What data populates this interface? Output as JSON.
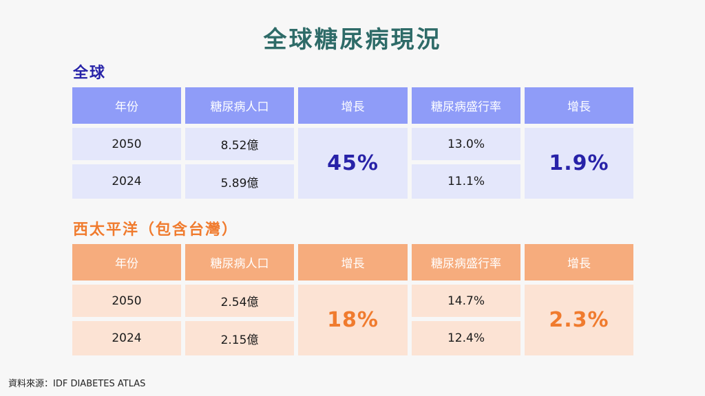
{
  "title": "全球糖尿病現況",
  "sections": {
    "global": {
      "heading": "全球",
      "headers": [
        "年份",
        "糖尿病人口",
        "增長",
        "糖尿病盛行率",
        "增長"
      ],
      "rows": [
        {
          "year": "2050",
          "population": "8.52億",
          "prevalence": "13.0%"
        },
        {
          "year": "2024",
          "population": "5.89億",
          "prevalence": "11.1%"
        }
      ],
      "population_growth": "45%",
      "prevalence_growth": "1.9%"
    },
    "western_pacific": {
      "heading": "西太平洋（包含台灣）",
      "headers": [
        "年份",
        "糖尿病人口",
        "增長",
        "糖尿病盛行率",
        "增長"
      ],
      "rows": [
        {
          "year": "2050",
          "population": "2.54億",
          "prevalence": "14.7%"
        },
        {
          "year": "2024",
          "population": "2.15億",
          "prevalence": "12.4%"
        }
      ],
      "population_growth": "18%",
      "prevalence_growth": "2.3%"
    }
  },
  "source": "資料來源：IDF DIABETES ATLAS",
  "colors": {
    "title": "#2e6b68",
    "global_accent": "#2722a8",
    "global_header": "#8f9cf8",
    "global_body": "#e4e7fb",
    "wp_accent": "#f07b2e",
    "wp_header": "#f6ac7d",
    "wp_body": "#fce3d4"
  }
}
